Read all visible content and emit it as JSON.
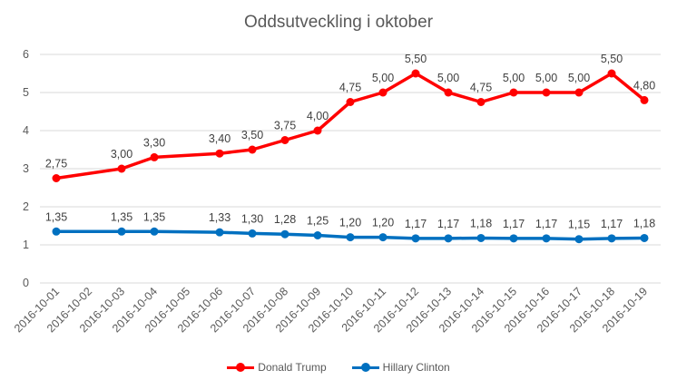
{
  "chart_data": {
    "type": "line",
    "title": "Oddsutveckling i oktober",
    "categories": [
      "2016-10-01",
      "2016-10-02",
      "2016-10-03",
      "2016-10-04",
      "2016-10-05",
      "2016-10-06",
      "2016-10-07",
      "2016-10-08",
      "2016-10-09",
      "2016-10-10",
      "2016-10-11",
      "2016-10-12",
      "2016-10-13",
      "2016-10-14",
      "2016-10-15",
      "2016-10-16",
      "2016-10-17",
      "2016-10-18",
      "2016-10-19"
    ],
    "ylim": [
      0,
      6
    ],
    "yticks": [
      "0",
      "1",
      "2",
      "3",
      "4",
      "5",
      "6"
    ],
    "grid": true,
    "legend_position": "bottom",
    "series": [
      {
        "name": "Donald Trump",
        "color": "#ff0000",
        "values": [
          2.75,
          null,
          3.0,
          3.3,
          null,
          3.4,
          3.5,
          3.75,
          4.0,
          4.75,
          5.0,
          5.5,
          5.0,
          4.75,
          5.0,
          5.0,
          5.0,
          5.5,
          4.8
        ],
        "labels": [
          "2,75",
          "",
          "3,00",
          "3,30",
          "",
          "3,40",
          "3,50",
          "3,75",
          "4,00",
          "4,75",
          "5,00",
          "5,50",
          "5,00",
          "4,75",
          "5,00",
          "5,00",
          "5,00",
          "5,50",
          "4,80"
        ]
      },
      {
        "name": "Hillary Clinton",
        "color": "#0070c0",
        "values": [
          1.35,
          null,
          1.35,
          1.35,
          null,
          1.33,
          1.3,
          1.28,
          1.25,
          1.2,
          1.2,
          1.17,
          1.17,
          1.18,
          1.17,
          1.17,
          1.15,
          1.17,
          1.18
        ],
        "labels": [
          "1,35",
          "",
          "1,35",
          "1,35",
          "",
          "1,33",
          "1,30",
          "1,28",
          "1,25",
          "1,20",
          "1,20",
          "1,17",
          "1,17",
          "1,18",
          "1,17",
          "1,17",
          "1,15",
          "1,17",
          "1,18"
        ]
      }
    ]
  }
}
